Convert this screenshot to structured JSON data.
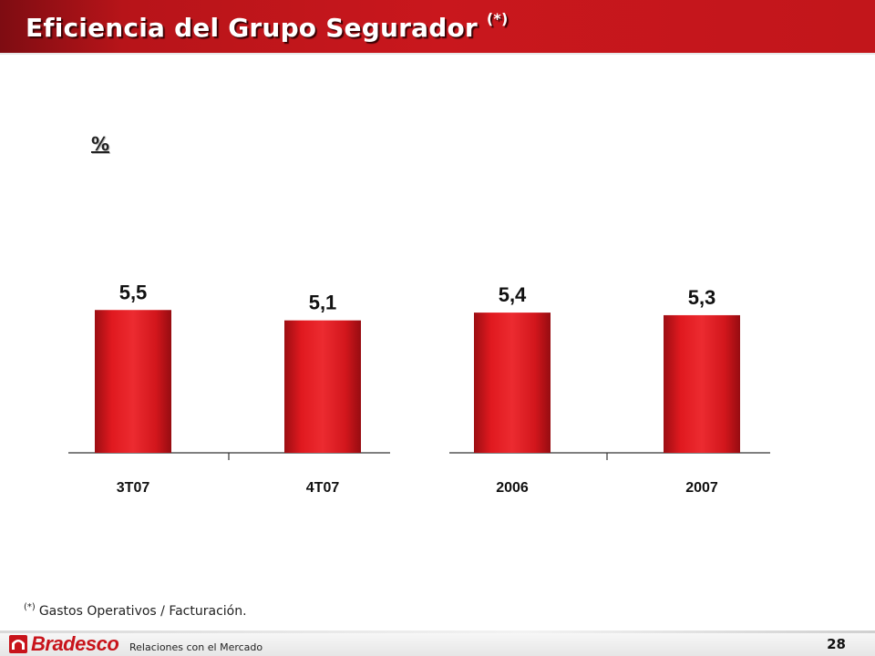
{
  "header": {
    "title": "Eficiencia del Grupo Segurador",
    "title_mark": "(*)"
  },
  "unit_label": "%",
  "chart_data": [
    {
      "type": "bar",
      "categories": [
        "3T07",
        "4T07"
      ],
      "values": [
        5.5,
        5.1
      ],
      "value_labels": [
        "5,5",
        "5,1"
      ],
      "color": "#d8161d"
    },
    {
      "type": "bar",
      "categories": [
        "2006",
        "2007"
      ],
      "values": [
        5.4,
        5.3
      ],
      "value_labels": [
        "5,4",
        "5,3"
      ],
      "color": "#d8161d"
    }
  ],
  "footnote": {
    "mark": "(*)",
    "text": "Gastos Operativos / Facturación."
  },
  "footer": {
    "brand": "Bradesco",
    "caption": "Relaciones con el Mercado",
    "page_number": "28"
  },
  "colors": {
    "title_bar": "#c2161b",
    "bar": "#d8161d",
    "brand": "#c8141b"
  }
}
